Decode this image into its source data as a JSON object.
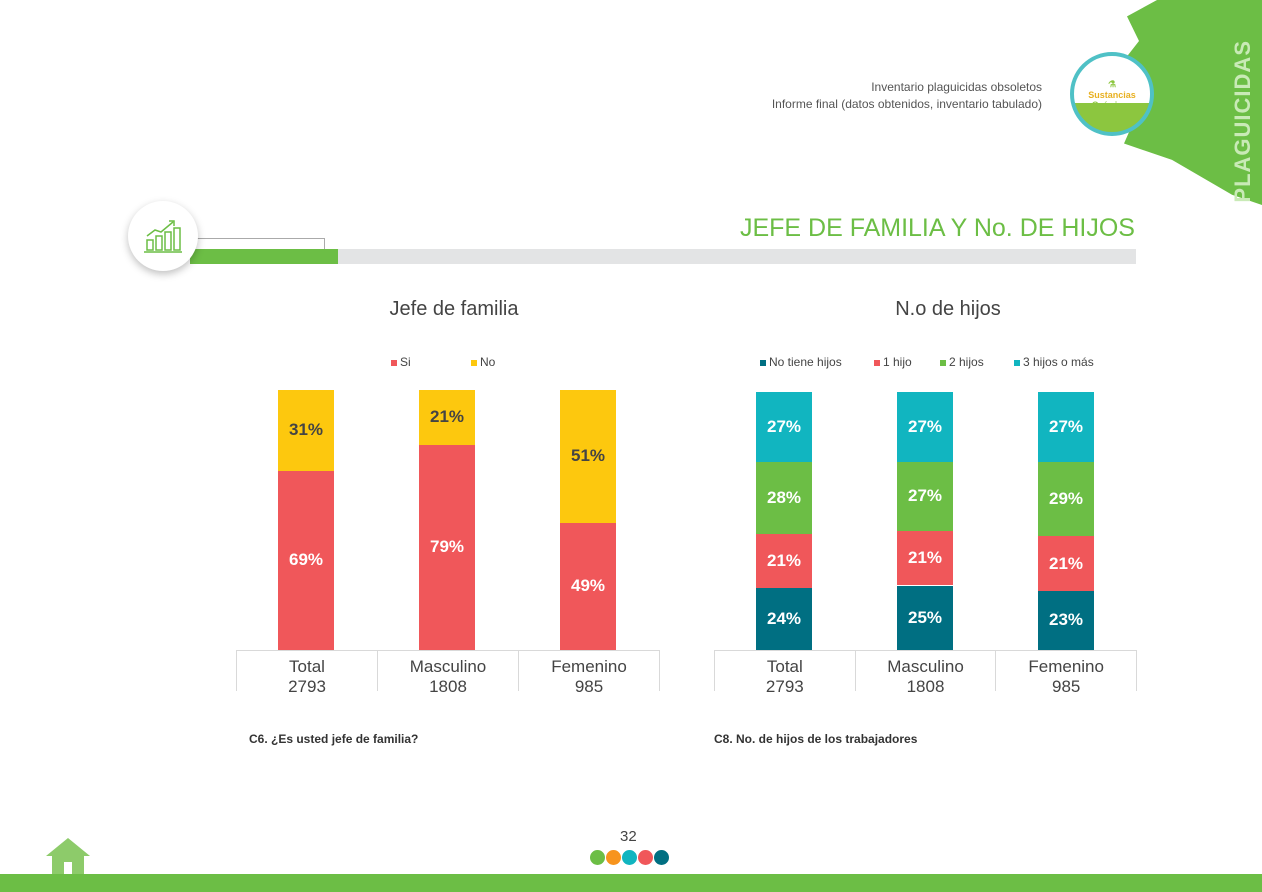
{
  "header": {
    "line1": "Inventario plaguicidas obsoletos",
    "line2": "Informe final (datos obtenidos, inventario tabulado)",
    "side_label": "PLAGUICIDAS",
    "logo_text": "Sustancias Químicas"
  },
  "section_title": "JEFE DE FAMILIA Y No. DE HIJOS",
  "colors": {
    "red": "#F0575A",
    "yellow": "#FDC80E",
    "teal": "#006F82",
    "cyan": "#11B5C0",
    "green": "#6CBE45"
  },
  "chart_data": [
    {
      "type": "bar",
      "stacked": true,
      "title": "Jefe de familia",
      "categories": [
        "Total\n2793",
        "Masculino\n1808",
        "Femenino\n985"
      ],
      "category_names": [
        "Total",
        "Masculino",
        "Femenino"
      ],
      "category_counts": [
        "2793",
        "1808",
        "985"
      ],
      "series": [
        {
          "name": "Si",
          "color": "#F0575A",
          "values": [
            69,
            79,
            49
          ]
        },
        {
          "name": "No",
          "color": "#FDC80E",
          "values": [
            31,
            21,
            51
          ]
        }
      ],
      "ylim": [
        0,
        100
      ],
      "legend": "top",
      "caption": "C6. ¿Es usted jefe de familia?"
    },
    {
      "type": "bar",
      "stacked": true,
      "title": "N.o de hijos",
      "categories": [
        "Total\n2793",
        "Masculino\n1808",
        "Femenino\n985"
      ],
      "category_names": [
        "Total",
        "Masculino",
        "Femenino"
      ],
      "category_counts": [
        "2793",
        "1808",
        "985"
      ],
      "series": [
        {
          "name": "No tiene hijos",
          "color": "#006F82",
          "values": [
            24,
            25,
            23
          ]
        },
        {
          "name": "1 hijo",
          "color": "#F0575A",
          "values": [
            21,
            21,
            21
          ]
        },
        {
          "name": "2 hijos",
          "color": "#6CBE45",
          "values": [
            28,
            27,
            29
          ]
        },
        {
          "name": "3 hijos o más",
          "color": "#11B5C0",
          "values": [
            27,
            27,
            27
          ]
        }
      ],
      "ylim": [
        0,
        100
      ],
      "legend": "top",
      "caption": "C8. No. de hijos de los trabajadores"
    }
  ],
  "footer": {
    "page_number": "32"
  }
}
